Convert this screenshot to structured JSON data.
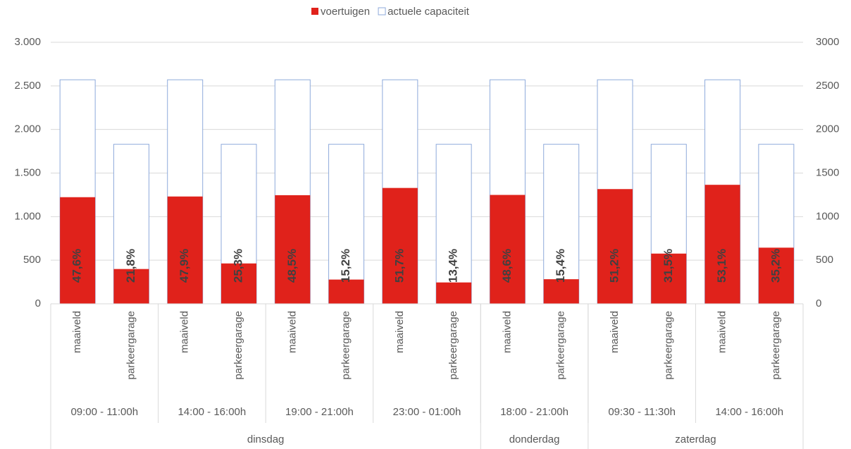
{
  "chart_data": {
    "type": "bar",
    "overlap": true,
    "categories": [
      "maaiveld",
      "parkeergarage",
      "maaiveld",
      "parkeergarage",
      "maaiveld",
      "parkeergarage",
      "maaiveld",
      "parkeergarage",
      "maaiveld",
      "parkeergarage",
      "maaiveld",
      "parkeergarage",
      "maaiveld",
      "parkeergarage"
    ],
    "time_slots": [
      {
        "label": "09:00 - 11:00h",
        "span": 2
      },
      {
        "label": "14:00 - 16:00h",
        "span": 2
      },
      {
        "label": "19:00 - 21:00h",
        "span": 2
      },
      {
        "label": "23:00 - 01:00h",
        "span": 2
      },
      {
        "label": "18:00 - 21:00h",
        "span": 2
      },
      {
        "label": "09:30 - 11:30h",
        "span": 2
      },
      {
        "label": "14:00 - 16:00h",
        "span": 2
      }
    ],
    "days": [
      {
        "label": "dinsdag",
        "span": 8
      },
      {
        "label": "donderdag",
        "span": 2
      },
      {
        "label": "zaterdag",
        "span": 4
      }
    ],
    "series": [
      {
        "name": "voertuigen",
        "color": "#e0221b",
        "style": "filled",
        "values": [
          1223,
          399,
          1231,
          463,
          1246,
          278,
          1329,
          245,
          1249,
          282,
          1316,
          576,
          1365,
          644
        ]
      },
      {
        "name": "actuele capaciteit",
        "color": "#8eaadb",
        "style": "outline",
        "values": [
          2570,
          1830,
          2570,
          1830,
          2570,
          1830,
          2570,
          1830,
          2570,
          1830,
          2570,
          1830,
          2570,
          1830
        ]
      }
    ],
    "data_labels": {
      "values": [
        47.6,
        21.8,
        47.9,
        25.3,
        48.5,
        15.2,
        51.7,
        13.4,
        48.6,
        15.4,
        51.2,
        31.5,
        53.1,
        35.2
      ],
      "labels": [
        "47,6%",
        "21,8%",
        "47,9%",
        "25,3%",
        "48,5%",
        "15,2%",
        "51,7%",
        "13,4%",
        "48,6%",
        "15,4%",
        "51,2%",
        "31,5%",
        "53,1%",
        "35,2%"
      ]
    },
    "ylim": [
      0,
      3000
    ],
    "yticks": [
      0,
      500,
      {
        "value": 1000,
        "label": "1.000"
      },
      {
        "value": 1500,
        "label": "1.500"
      },
      {
        "value": 2000,
        "label": "2.000"
      },
      {
        "value": 2500,
        "label": "2.500"
      },
      {
        "value": 3000,
        "label": "3.000"
      }
    ],
    "y2lim": [
      0,
      3000
    ],
    "y2ticks": [
      0,
      500,
      1000,
      1500,
      2000,
      2500,
      3000
    ],
    "grid": true,
    "legend": "top"
  }
}
